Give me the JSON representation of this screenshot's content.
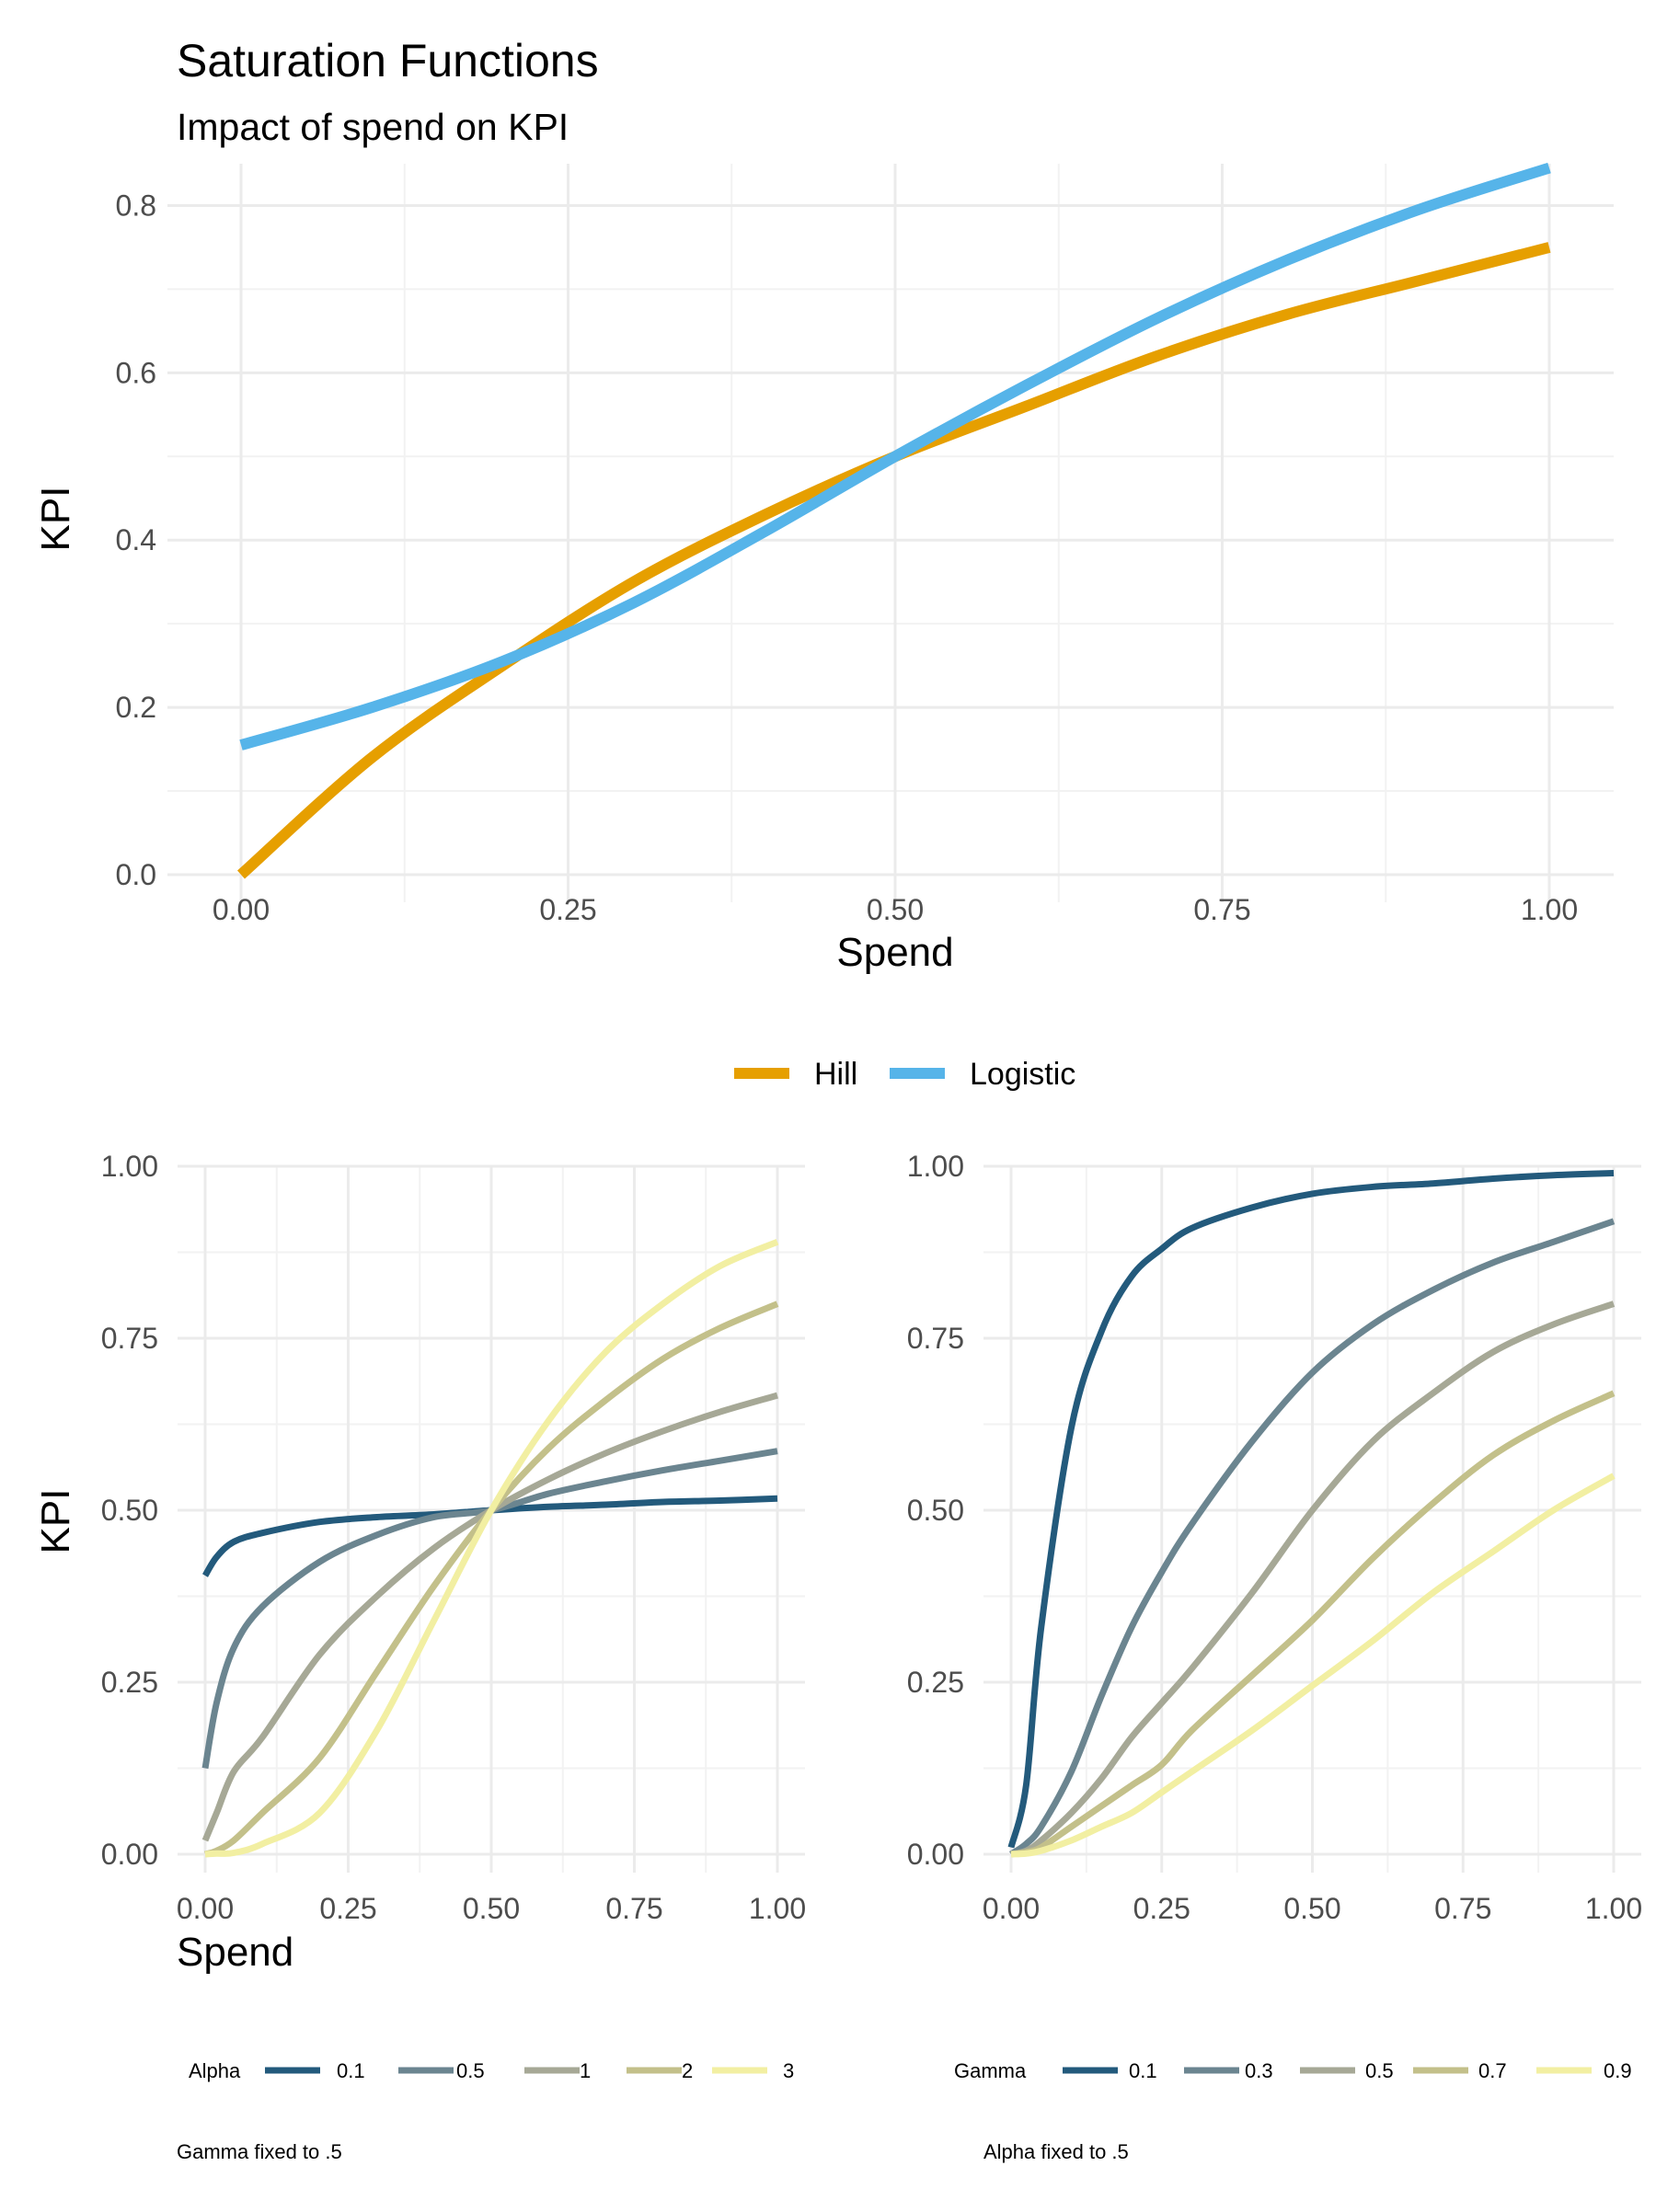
{
  "title": "Saturation Functions",
  "subtitle": "Impact of spend on KPI",
  "colors": {
    "hill": "#E69F00",
    "logistic": "#56B4E9",
    "ramp": [
      "#235A7C",
      "#6B8590",
      "#A6A896",
      "#C3C08A",
      "#F2EFA2"
    ],
    "grid": "#EBEBEB",
    "tick_text": "#4D4D4D"
  },
  "chart_data": [
    {
      "type": "line",
      "xlabel": "Spend",
      "ylabel": "KPI",
      "xlim": [
        0,
        1
      ],
      "ylim": [
        0,
        0.85
      ],
      "xticks": [
        "0.00",
        "0.25",
        "0.50",
        "0.75",
        "1.00"
      ],
      "yticks": [
        "0.0",
        "0.2",
        "0.4",
        "0.6",
        "0.8"
      ],
      "legend_position": "bottom",
      "x": [
        0,
        0.1,
        0.2,
        0.3,
        0.4,
        0.5,
        0.6,
        0.7,
        0.8,
        0.9,
        1.0
      ],
      "series": [
        {
          "name": "Hill",
          "values": [
            0.0,
            0.14,
            0.25,
            0.35,
            0.43,
            0.5,
            0.56,
            0.62,
            0.67,
            0.71,
            0.75
          ]
        },
        {
          "name": "Logistic",
          "values": [
            0.155,
            0.2,
            0.255,
            0.325,
            0.41,
            0.5,
            0.585,
            0.665,
            0.735,
            0.795,
            0.845
          ]
        }
      ]
    },
    {
      "type": "line",
      "xlabel": "Spend",
      "ylabel": "KPI",
      "xlim": [
        0,
        1
      ],
      "ylim": [
        0,
        1
      ],
      "xticks": [
        "0.00",
        "0.25",
        "0.50",
        "0.75",
        "1.00"
      ],
      "yticks": [
        "0.00",
        "0.25",
        "0.50",
        "0.75",
        "1.00"
      ],
      "legend_title": "Alpha",
      "caption": "Gamma fixed to .5",
      "x": [
        0,
        0.02,
        0.05,
        0.1,
        0.2,
        0.3,
        0.4,
        0.5,
        0.6,
        0.7,
        0.8,
        0.9,
        1.0
      ],
      "series": [
        {
          "name": "0.1",
          "values": [
            0.405,
            0.432,
            0.454,
            0.467,
            0.483,
            0.49,
            0.494,
            0.5,
            0.505,
            0.508,
            0.512,
            0.514,
            0.517
          ]
        },
        {
          "name": "0.5",
          "values": [
            0.125,
            0.22,
            0.3,
            0.36,
            0.425,
            0.464,
            0.49,
            0.5,
            0.524,
            0.542,
            0.558,
            0.572,
            0.586
          ]
        },
        {
          "name": "1",
          "values": [
            0.02,
            0.06,
            0.12,
            0.17,
            0.29,
            0.375,
            0.445,
            0.5,
            0.545,
            0.583,
            0.615,
            0.643,
            0.667
          ]
        },
        {
          "name": "2",
          "values": [
            0.0,
            0.005,
            0.02,
            0.06,
            0.14,
            0.265,
            0.39,
            0.5,
            0.59,
            0.66,
            0.72,
            0.765,
            0.8
          ]
        },
        {
          "name": "3",
          "values": [
            0.0,
            0.001,
            0.002,
            0.015,
            0.06,
            0.18,
            0.34,
            0.5,
            0.63,
            0.73,
            0.8,
            0.855,
            0.89
          ]
        }
      ]
    },
    {
      "type": "line",
      "xlabel": "",
      "ylabel": "",
      "xlim": [
        0,
        1
      ],
      "ylim": [
        0,
        1
      ],
      "xticks": [
        "0.00",
        "0.25",
        "0.50",
        "0.75",
        "1.00"
      ],
      "yticks": [
        "0.00",
        "0.25",
        "0.50",
        "0.75",
        "1.00"
      ],
      "legend_title": "Gamma",
      "caption": "Alpha fixed to .5",
      "x": [
        0,
        0.025,
        0.05,
        0.1,
        0.15,
        0.2,
        0.25,
        0.3,
        0.4,
        0.5,
        0.6,
        0.7,
        0.8,
        0.9,
        1.0
      ],
      "series": [
        {
          "name": "0.1",
          "values": [
            0.01,
            0.1,
            0.33,
            0.62,
            0.76,
            0.84,
            0.88,
            0.91,
            0.94,
            0.96,
            0.97,
            0.975,
            0.982,
            0.987,
            0.99
          ]
        },
        {
          "name": "0.3",
          "values": [
            0.0,
            0.015,
            0.04,
            0.12,
            0.23,
            0.33,
            0.41,
            0.48,
            0.6,
            0.7,
            0.77,
            0.82,
            0.86,
            0.89,
            0.92
          ]
        },
        {
          "name": "0.5",
          "values": [
            0.0,
            0.005,
            0.02,
            0.06,
            0.11,
            0.17,
            0.22,
            0.27,
            0.38,
            0.5,
            0.6,
            0.67,
            0.73,
            0.77,
            0.8
          ]
        },
        {
          "name": "0.7",
          "values": [
            0.0,
            0.003,
            0.01,
            0.04,
            0.07,
            0.1,
            0.13,
            0.18,
            0.26,
            0.34,
            0.43,
            0.51,
            0.58,
            0.63,
            0.67
          ]
        },
        {
          "name": "0.9",
          "values": [
            0.0,
            0.001,
            0.005,
            0.02,
            0.04,
            0.06,
            0.09,
            0.12,
            0.18,
            0.245,
            0.31,
            0.38,
            0.44,
            0.5,
            0.55
          ]
        }
      ]
    }
  ]
}
